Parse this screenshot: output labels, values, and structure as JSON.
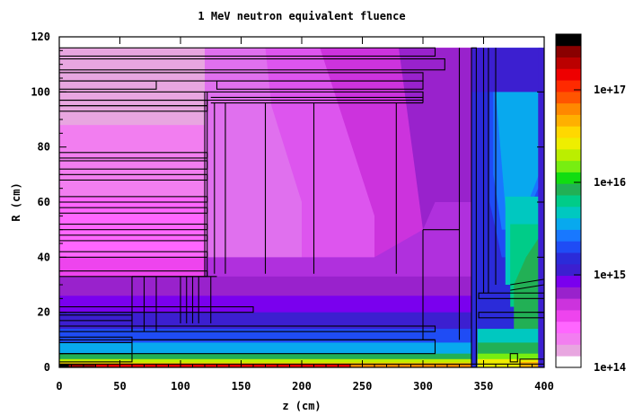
{
  "chart_data": {
    "type": "heatmap",
    "title": "1 MeV neutron equivalent fluence",
    "xlabel": "z (cm)",
    "ylabel": "R (cm)",
    "xlim": [
      0,
      400
    ],
    "ylim": [
      0,
      120
    ],
    "x_ticks": [
      "0",
      "50",
      "100",
      "150",
      "200",
      "250",
      "300",
      "350",
      "400"
    ],
    "y_ticks": [
      "0",
      "20",
      "40",
      "60",
      "80",
      "100",
      "120"
    ],
    "colorbar": {
      "scale": "log",
      "range": [
        100000000000000.0,
        4e+17
      ],
      "tick_labels": [
        "1e+14",
        "1e+15",
        "1e+16",
        "1e+17"
      ],
      "colors": [
        "#ffffff",
        "#e8a6e0",
        "#f27ef0",
        "#ff66ff",
        "#ee44ee",
        "#cc33dd",
        "#9922cc",
        "#7a00ee",
        "#3c1fd0",
        "#2b2bd9",
        "#1f4cf5",
        "#1878ff",
        "#08a9ee",
        "#00c8c0",
        "#00cc88",
        "#22b055",
        "#11dd11",
        "#77ee11",
        "#bbee00",
        "#eeee00",
        "#ffd800",
        "#ffb000",
        "#ff8800",
        "#ff5500",
        "#ff2a00",
        "#ee0000",
        "#bb0000",
        "#8a0000",
        "#000000"
      ]
    }
  }
}
